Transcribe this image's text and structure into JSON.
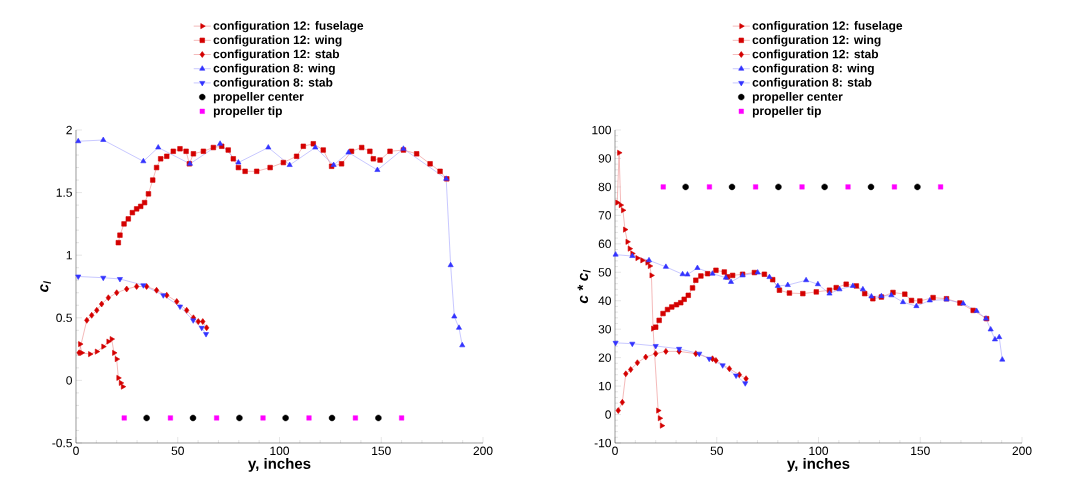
{
  "chart_data": [
    {
      "type": "line",
      "xlabel": "y, inches",
      "ylabel": "c$_{l}$",
      "xlim": [
        0,
        200
      ],
      "xticks": [
        0,
        50,
        100,
        150,
        200
      ],
      "ylim": [
        -0.5,
        2
      ],
      "yticks": [
        -0.5,
        0,
        0.5,
        1,
        1.5,
        2
      ],
      "legend": "top",
      "series": [
        {
          "name": "configuration 12:  fuselage",
          "type": "line",
          "color": "#d40000",
          "marker": "triangle-right",
          "x": [
            2.0,
            2.8,
            6.9,
            10.2,
            13.4,
            15.9,
            17.5,
            18.7,
            20.0,
            20.8,
            22.0,
            23.0
          ],
          "values": [
            0.29,
            0.22,
            0.21,
            0.23,
            0.27,
            0.31,
            0.33,
            0.22,
            0.17,
            0.02,
            -0.02,
            -0.05
          ]
        },
        {
          "name": "configuration 12:  wing",
          "type": "line",
          "color": "#d40000",
          "marker": "square",
          "x": [
            20.8,
            21.6,
            23.6,
            25.7,
            27.7,
            29.8,
            31.8,
            33.7,
            35.6,
            37.7,
            39.6,
            41.6,
            44.6,
            47.8,
            51.1,
            54.1,
            55.7,
            57.7,
            62.6,
            67.5,
            71.6,
            74.8,
            77.3,
            79.8,
            83.1,
            88.8,
            95.4,
            101.9,
            108.4,
            111.7,
            116.6,
            121.5,
            125.6,
            130.5,
            135.4,
            140.4,
            144.4,
            146.1,
            149.4,
            154.3,
            160.9,
            167.4,
            174.0,
            178.9,
            182.2
          ],
          "values": [
            1.1,
            1.16,
            1.25,
            1.29,
            1.34,
            1.37,
            1.39,
            1.42,
            1.49,
            1.6,
            1.7,
            1.77,
            1.79,
            1.83,
            1.85,
            1.83,
            1.73,
            1.81,
            1.83,
            1.86,
            1.87,
            1.84,
            1.77,
            1.7,
            1.67,
            1.67,
            1.7,
            1.74,
            1.79,
            1.87,
            1.89,
            1.84,
            1.71,
            1.73,
            1.83,
            1.86,
            1.83,
            1.77,
            1.76,
            1.83,
            1.84,
            1.81,
            1.73,
            1.67,
            1.61
          ]
        },
        {
          "name": "configuration 12:  stab",
          "type": "line",
          "color": "#d40000",
          "marker": "diamond",
          "x": [
            1.5,
            5.3,
            7.7,
            10.2,
            12.6,
            15.9,
            20.0,
            24.9,
            29.8,
            34.7,
            39.6,
            44.6,
            49.5,
            54.4,
            57.7,
            60.1,
            62.3,
            64.2
          ],
          "values": [
            0.22,
            0.48,
            0.52,
            0.56,
            0.61,
            0.66,
            0.7,
            0.73,
            0.75,
            0.75,
            0.72,
            0.68,
            0.63,
            0.56,
            0.5,
            0.47,
            0.47,
            0.42
          ]
        },
        {
          "name": "configuration 8:  wing",
          "type": "line",
          "color": "#3333ff",
          "marker": "triangle",
          "x": [
            1.1,
            13.4,
            33.1,
            40.4,
            56.0,
            70.8,
            79.8,
            94.5,
            105.0,
            117.6,
            126.6,
            133.9,
            148.1,
            160.9,
            181.9,
            184.1,
            185.9,
            188.2,
            189.8
          ],
          "values": [
            1.91,
            1.92,
            1.75,
            1.86,
            1.73,
            1.89,
            1.74,
            1.86,
            1.72,
            1.86,
            1.72,
            1.82,
            1.68,
            1.85,
            1.61,
            0.92,
            0.51,
            0.42,
            0.28
          ]
        },
        {
          "name": "configuration 8:  stab",
          "type": "line",
          "color": "#3333ff",
          "marker": "triangle-down",
          "x": [
            1.1,
            13.4,
            21.6,
            33.1,
            42.9,
            51.1,
            57.6,
            61.8,
            63.9
          ],
          "values": [
            0.83,
            0.82,
            0.81,
            0.76,
            0.68,
            0.59,
            0.48,
            0.42,
            0.37
          ]
        },
        {
          "name": "propeller center",
          "type": "scatter",
          "color": "#000000",
          "marker": "circle",
          "x": [
            34.7,
            57.5,
            80.3,
            103.0,
            125.8,
            148.6
          ],
          "values": [
            -0.3,
            -0.3,
            -0.3,
            -0.3,
            -0.3,
            -0.3
          ]
        },
        {
          "name": "propeller tip",
          "type": "scatter",
          "color": "#ff00ff",
          "marker": "square",
          "x": [
            23.7,
            46.4,
            69.1,
            91.9,
            114.5,
            137.3,
            160.0
          ],
          "values": [
            -0.3,
            -0.3,
            -0.3,
            -0.3,
            -0.3,
            -0.3,
            -0.3
          ]
        }
      ]
    },
    {
      "type": "line",
      "xlabel": "y, inches",
      "ylabel": "c * c$_{l}$",
      "xlim": [
        0,
        200
      ],
      "xticks": [
        0,
        50,
        100,
        150,
        200
      ],
      "ylim": [
        -10,
        100
      ],
      "yticks": [
        -10,
        0,
        10,
        20,
        30,
        40,
        50,
        60,
        70,
        80,
        90,
        100
      ],
      "legend": "top",
      "series": [
        {
          "name": "configuration 12:  fuselage",
          "type": "line",
          "color": "#d40000",
          "marker": "triangle-right",
          "x": [
            1.1,
            2.0,
            2.8,
            3.9,
            4.9,
            6.1,
            7.2,
            8.5,
            11.0,
            13.4,
            15.9,
            17.1,
            17.9,
            18.7,
            21.2,
            22.0,
            23.0
          ],
          "values": [
            74.5,
            92,
            73.6,
            71.8,
            65,
            60.7,
            58.3,
            56.6,
            55,
            54.2,
            53.4,
            52.2,
            48.9,
            30.2,
            1.4,
            -1.3,
            -3.9
          ]
        },
        {
          "name": "configuration 12:  wing",
          "type": "line",
          "color": "#d40000",
          "marker": "square",
          "x": [
            20.0,
            21.7,
            23.6,
            25.8,
            27.9,
            30.2,
            32.3,
            34.0,
            36.0,
            38.1,
            39.7,
            42.2,
            45.5,
            49.6,
            53.7,
            55.3,
            57.8,
            62.7,
            68.5,
            73.4,
            77.5,
            80.8,
            85.7,
            92.3,
            98.9,
            105.4,
            108.7,
            113.6,
            118.6,
            122.7,
            126.7,
            130.9,
            136.6,
            142.4,
            145.7,
            149.8,
            156.3,
            162.9,
            169.5,
            176.0,
            182.6
          ],
          "values": [
            30.7,
            33.1,
            35.5,
            36.9,
            37.8,
            38.6,
            39.3,
            40.5,
            41.9,
            44.5,
            47.2,
            48.7,
            49.5,
            50.7,
            50.1,
            48.4,
            48.9,
            49.3,
            49.9,
            49.3,
            47.4,
            43.7,
            42.7,
            42.5,
            43.1,
            43.7,
            44.6,
            45.8,
            45.2,
            42.5,
            40.7,
            41.3,
            42.9,
            42.3,
            40.1,
            39.9,
            41.1,
            40.7,
            39.2,
            36.6,
            33.7
          ]
        },
        {
          "name": "configuration 12:  stab",
          "type": "line",
          "color": "#d40000",
          "marker": "diamond",
          "x": [
            1.6,
            3.6,
            5.3,
            7.7,
            11.0,
            15.1,
            20.0,
            25.0,
            31.5,
            39.7,
            47.9,
            49.6,
            56.2,
            61.1,
            64.4
          ],
          "values": [
            1.4,
            4.3,
            14.3,
            15.8,
            18.2,
            20.2,
            21.4,
            22.2,
            22.2,
            21.4,
            19.6,
            19,
            16.1,
            14,
            12.6
          ]
        },
        {
          "name": "configuration 8:  wing",
          "type": "line",
          "color": "#3333ff",
          "marker": "triangle",
          "x": [
            0.3,
            8.5,
            16.7,
            25.0,
            33.2,
            35.6,
            40.5,
            47.9,
            54.5,
            57.0,
            62.7,
            70.1,
            75.9,
            80.0,
            84.9,
            93.9,
            99.7,
            105.4,
            110.3,
            116.9,
            121.8,
            126.0,
            130.9,
            135.8,
            141.5,
            148.1,
            154.7,
            162.9,
            171.1,
            177.7,
            182.3,
            184.6,
            186.7,
            188.8,
            190.3
          ],
          "values": [
            56.2,
            55.7,
            54.2,
            51.9,
            49.3,
            49.2,
            51.5,
            49.5,
            48.1,
            46.6,
            48.9,
            49.9,
            48.3,
            45.2,
            45.5,
            47.2,
            45.8,
            42.5,
            44,
            45.2,
            44,
            41.5,
            41.6,
            41.9,
            39.5,
            38.1,
            40.1,
            40.4,
            39,
            36.4,
            33.7,
            29.9,
            26.4,
            27.2,
            19.3
          ]
        },
        {
          "name": "configuration 8:  stab",
          "type": "line",
          "color": "#3333ff",
          "marker": "triangle-down",
          "x": [
            0.3,
            8.5,
            20.0,
            31.5,
            41.4,
            46.3,
            52.9,
            59.5,
            64.0
          ],
          "values": [
            25.2,
            24.9,
            24.1,
            23.1,
            21.4,
            19.6,
            17.3,
            13.7,
            11.0
          ]
        },
        {
          "name": "propeller center",
          "type": "scatter",
          "color": "#000000",
          "marker": "circle",
          "x": [
            34.7,
            57.5,
            80.3,
            103.0,
            125.8,
            148.6
          ],
          "values": [
            80,
            80,
            80,
            80,
            80,
            80
          ]
        },
        {
          "name": "propeller tip",
          "type": "scatter",
          "color": "#ff00ff",
          "marker": "square",
          "x": [
            23.7,
            46.4,
            69.1,
            91.9,
            114.5,
            137.3,
            160.0
          ],
          "values": [
            80,
            80,
            80,
            80,
            80,
            80,
            80
          ]
        }
      ]
    }
  ]
}
